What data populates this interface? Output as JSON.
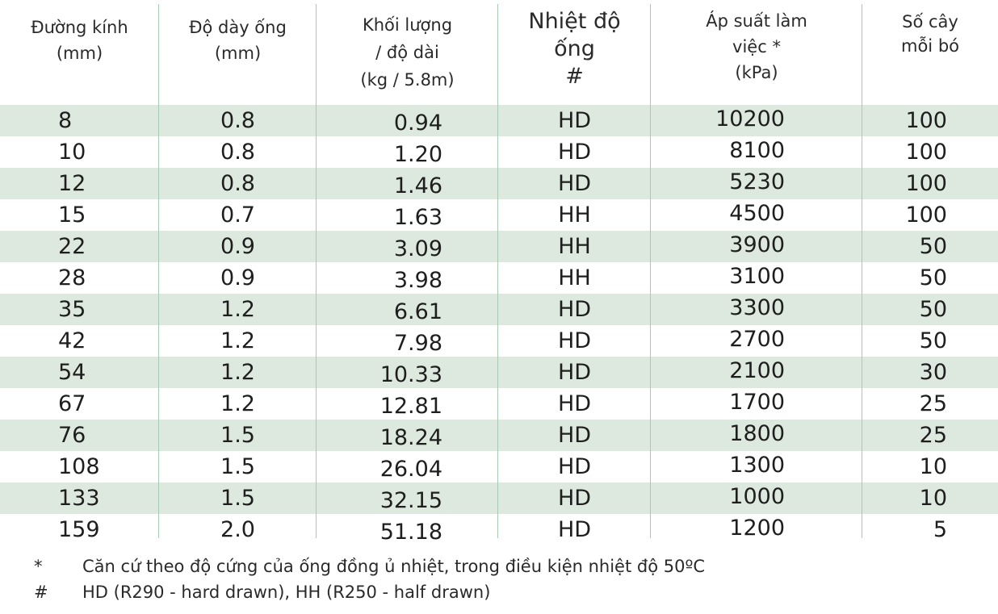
{
  "table": {
    "headers": [
      {
        "lines": [
          "Đường kính",
          "(mm)"
        ]
      },
      {
        "lines": [
          "Độ dày ống",
          "(mm)"
        ]
      },
      {
        "lines": [
          "Khối lượng",
          "/ độ dài",
          "(kg / 5.8m)"
        ]
      },
      {
        "lines": [
          "Nhiệt độ",
          "ống",
          "#"
        ]
      },
      {
        "lines": [
          "Áp suất làm",
          "việc *",
          "(kPa)"
        ]
      },
      {
        "lines": [
          "Số  cây",
          "mỗi bó"
        ]
      }
    ],
    "rows": [
      [
        "8",
        "0.8",
        "0.94",
        "HD",
        "10200",
        "100"
      ],
      [
        "10",
        "0.8",
        "1.20",
        "HD",
        "8100",
        "100"
      ],
      [
        "12",
        "0.8",
        "1.46",
        "HD",
        "5230",
        "100"
      ],
      [
        "15",
        "0.7",
        "1.63",
        "HH",
        "4500",
        "100"
      ],
      [
        "22",
        "0.9",
        "3.09",
        "HH",
        "3900",
        "50"
      ],
      [
        "28",
        "0.9",
        "3.98",
        "HH",
        "3100",
        "50"
      ],
      [
        "35",
        "1.2",
        "6.61",
        "HD",
        "3300",
        "50"
      ],
      [
        "42",
        "1.2",
        "7.98",
        "HD",
        "2700",
        "50"
      ],
      [
        "54",
        "1.2",
        "10.33",
        "HD",
        "2100",
        "30"
      ],
      [
        "67",
        "1.2",
        "12.81",
        "HD",
        "1700",
        "25"
      ],
      [
        "76",
        "1.5",
        "18.24",
        "HD",
        "1800",
        "25"
      ],
      [
        "108",
        "1.5",
        "26.04",
        "HD",
        "1300",
        "10"
      ],
      [
        "133",
        "1.5",
        "32.15",
        "HD",
        "1000",
        "10"
      ],
      [
        "159",
        "2.0",
        "51.18",
        "HD",
        "1200",
        "5"
      ]
    ]
  },
  "notes": [
    {
      "symbol": "*",
      "text": "Căn cứ theo độ cứng của ống đồng ủ nhiệt, trong điều kiện nhiệt độ 50ºC"
    },
    {
      "symbol": "#",
      "text": "HD (R290 - hard drawn), HH (R250 - half drawn)"
    }
  ],
  "colors": {
    "row_shade": "#dde9de",
    "divider": "#a9c9b3"
  }
}
